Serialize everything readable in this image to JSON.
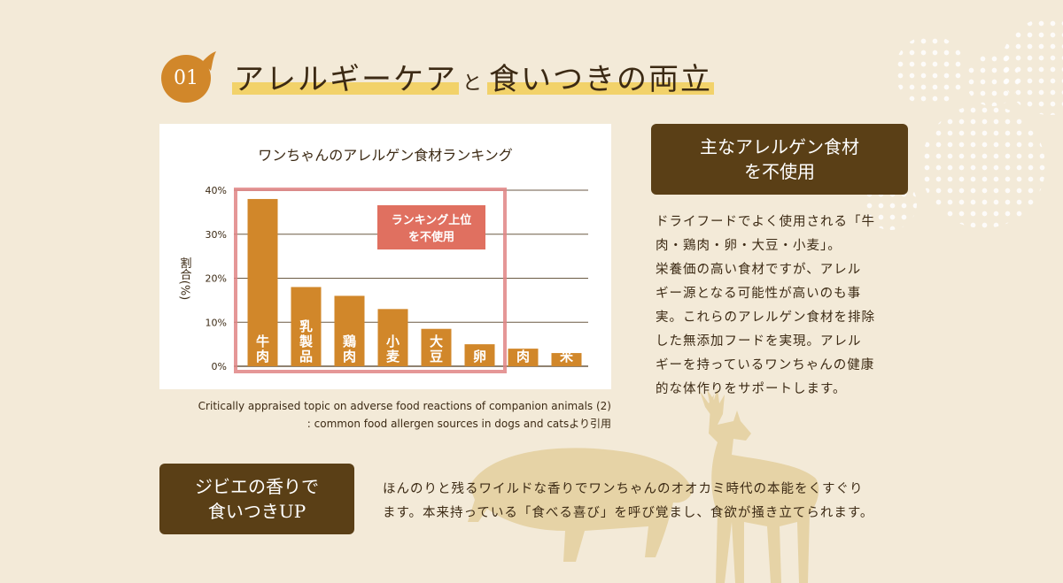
{
  "heading": {
    "number": "01",
    "part1": "アレルギーケア",
    "connector": "と",
    "part2": "食いつきの両立"
  },
  "chart_data": {
    "type": "bar",
    "title": "ワンちゃんのアレルゲン食材ランキング",
    "ylabel": "割合(%)",
    "y_ticks": [
      "0%",
      "10%",
      "20%",
      "30%",
      "40%"
    ],
    "ylim": [
      0,
      40
    ],
    "categories": [
      "牛肉",
      "乳製品",
      "鶏肉",
      "小麦",
      "大豆",
      "卵",
      "豚肉",
      "米"
    ],
    "values": [
      38,
      18,
      16,
      13,
      8.5,
      5,
      4,
      3
    ],
    "bar_color": "#d1872a",
    "highlight_label_line1": "ランキング上位",
    "highlight_label_line2": "を不使用",
    "highlight_color": "#e08585",
    "highlight_count": 6
  },
  "citation": {
    "line1": "Critically appraised topic on adverse food reactions of companion animals (2)",
    "line2": ": common food allergen sources in dogs and catsより引用"
  },
  "section1": {
    "title_line1": "主なアレルゲン食材",
    "title_line2": "を不使用",
    "lines": [
      "ドライフードでよく使用される「牛",
      "肉・鶏肉・卵・大豆・小麦」。",
      "栄養価の高い食材ですが、アレル",
      "ギー源となる可能性が高いのも事",
      "実。これらのアレルゲン食材を排除",
      "した無添加フードを実現。アレル",
      "ギーを持っているワンちゃんの健康",
      "的な体作りをサポートします。"
    ]
  },
  "section2": {
    "title_line1": "ジビエの香りで",
    "title_line2": "食いつきUP",
    "lines": [
      "ほんのりと残るワイルドな香りでワンちゃんのオオカミ時代の本能をくすぐり",
      "ます。本来持っている「食べる喜び」を呼び覚まし、食欲が掻き立てられます。"
    ]
  },
  "colors": {
    "background": "#f3ead8",
    "accent_orange": "#d1872a",
    "dark_brown": "#5a3f16",
    "highlight_yellow": "#f2d26a",
    "animal_silhouette": "#e6d3a6"
  }
}
